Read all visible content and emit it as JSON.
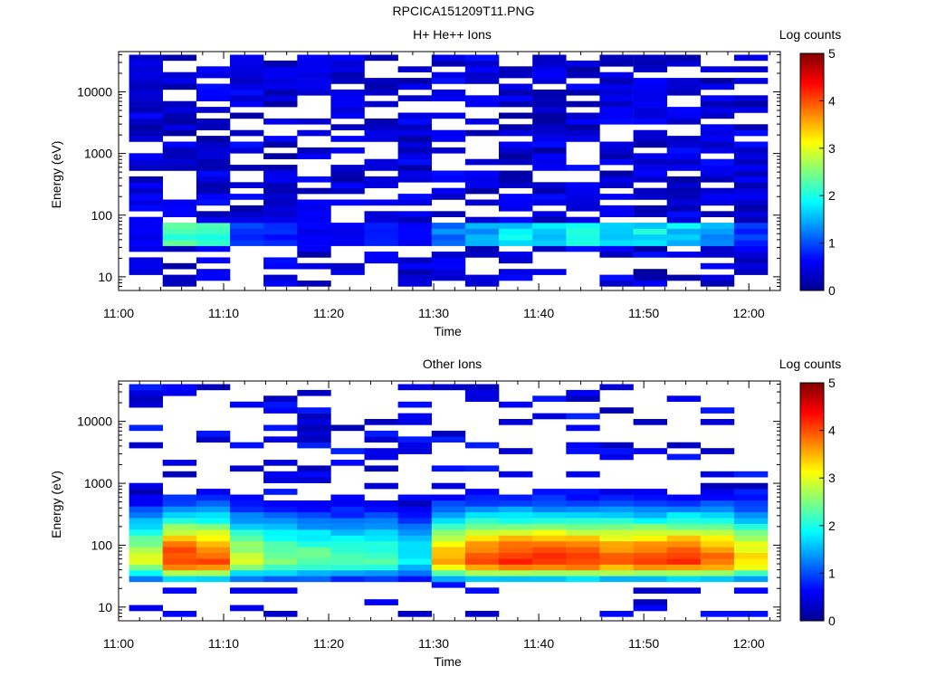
{
  "figure_title": "RPCICA151209T11.PNG",
  "chart_data": [
    {
      "type": "heatmap",
      "title": "H+ He++ Ions",
      "xlabel": "Time",
      "ylabel": "Energy (eV)",
      "y_scale": "log",
      "ylim": [
        6,
        45000
      ],
      "xlim": [
        "11:00",
        "12:03"
      ],
      "x_ticks": [
        "11:00",
        "11:10",
        "11:20",
        "11:30",
        "11:40",
        "11:50",
        "12:00"
      ],
      "y_ticks": [
        "10",
        "100",
        "1000",
        "10000"
      ],
      "colorbar": {
        "label": "Log counts",
        "range": [
          0,
          5
        ],
        "ticks": [
          "0",
          "1",
          "2",
          "3",
          "4",
          "5"
        ]
      },
      "time_bins": 19,
      "energy_bins": 40,
      "profile": "sparse",
      "peak_log_counts": [
        0.6,
        2.4,
        2.2,
        0.9,
        0.8,
        0.6,
        0.6,
        0.8,
        0.6,
        1.3,
        1.6,
        1.9,
        1.9,
        1.9,
        1.9,
        1.9,
        1.8,
        1.5,
        0.9
      ]
    },
    {
      "type": "heatmap",
      "title": "Other Ions",
      "xlabel": "Time",
      "ylabel": "Energy (eV)",
      "y_scale": "log",
      "ylim": [
        6,
        45000
      ],
      "xlim": [
        "11:00",
        "12:03"
      ],
      "x_ticks": [
        "11:00",
        "11:10",
        "11:20",
        "11:30",
        "11:40",
        "11:50",
        "12:00"
      ],
      "y_ticks": [
        "10",
        "100",
        "1000",
        "10000"
      ],
      "colorbar": {
        "label": "Log counts",
        "range": [
          0,
          5
        ],
        "ticks": [
          "0",
          "1",
          "2",
          "3",
          "4",
          "5"
        ]
      },
      "time_bins": 19,
      "energy_bins": 40,
      "profile": "dense",
      "peak_log_counts": [
        2.9,
        4.1,
        4.0,
        2.8,
        2.5,
        2.4,
        2.2,
        2.2,
        1.8,
        3.6,
        4.0,
        4.2,
        4.2,
        4.1,
        3.9,
        4.0,
        4.1,
        3.9,
        3.3
      ]
    }
  ]
}
